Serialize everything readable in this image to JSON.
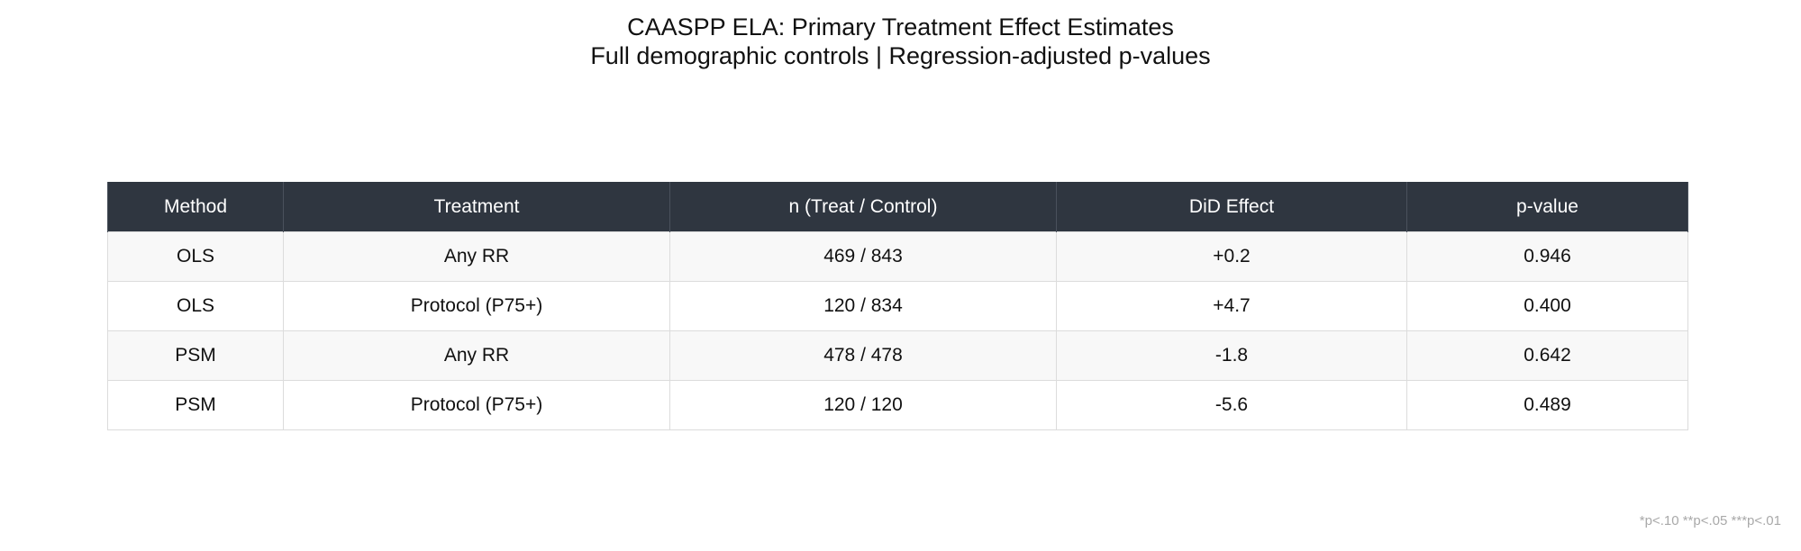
{
  "chart_data": {
    "type": "table",
    "title": "CAASPP ELA: Primary Treatment Effect Estimates",
    "subtitle": "Full demographic controls | Regression-adjusted p-values",
    "columns": [
      "Method",
      "Treatment",
      "n (Treat / Control)",
      "DiD Effect",
      "p-value"
    ],
    "rows": [
      [
        "OLS",
        "Any RR",
        "469 / 843",
        "+0.2",
        "0.946"
      ],
      [
        "OLS",
        "Protocol (P75+)",
        "120 / 834",
        "+4.7",
        "0.400"
      ],
      [
        "PSM",
        "Any RR",
        "478 / 478",
        "-1.8",
        "0.642"
      ],
      [
        "PSM",
        "Protocol (P75+)",
        "120 / 120",
        "-5.6",
        "0.489"
      ]
    ],
    "footnote": "*p<.10  **p<.05  ***p<.01",
    "colors": {
      "header_background": "#2f3640",
      "header_text": "#ffffff",
      "row_stripe": "#f8f8f8",
      "footnote_text": "#a9a9a9"
    }
  }
}
